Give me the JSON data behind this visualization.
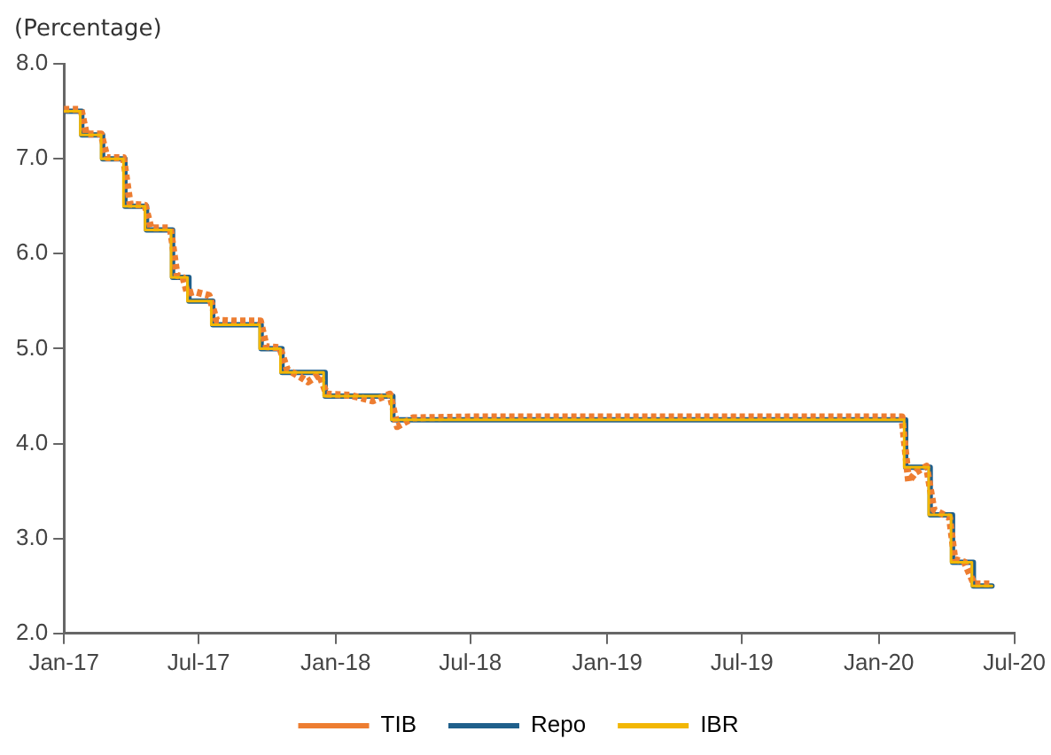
{
  "chart_data": {
    "type": "line",
    "ylabel": "(Percentage)",
    "legend": "bottom",
    "grid": false,
    "marker": "none",
    "xlim": [
      "2017-01-01",
      "2020-07-01"
    ],
    "xticks": [
      {
        "value": "2017-01",
        "label": "Jan-17"
      },
      {
        "value": "2017-07",
        "label": "Jul-17"
      },
      {
        "value": "2018-01",
        "label": "Jan-18"
      },
      {
        "value": "2018-07",
        "label": "Jul-18"
      },
      {
        "value": "2019-01",
        "label": "Jan-19"
      },
      {
        "value": "2019-07",
        "label": "Jul-19"
      },
      {
        "value": "2020-01",
        "label": "Jan-20"
      },
      {
        "value": "2020-07",
        "label": "Jul-20"
      }
    ],
    "ylim": [
      2,
      8
    ],
    "yticks": [
      {
        "value": 2,
        "label": "2.0"
      },
      {
        "value": 3,
        "label": "3.0"
      },
      {
        "value": 4,
        "label": "4.0"
      },
      {
        "value": 5,
        "label": "5.0"
      },
      {
        "value": 6,
        "label": "6.0"
      },
      {
        "value": 7,
        "label": "7.0"
      },
      {
        "value": 8,
        "label": "8.0"
      }
    ],
    "series": [
      {
        "name": "TIB",
        "line_style": "dotted",
        "color": "#ed7d31",
        "x": [
          "2017-01-01",
          "2017-01-24",
          "2017-01-31",
          "2017-02-20",
          "2017-02-28",
          "2017-03-22",
          "2017-03-31",
          "2017-04-20",
          "2017-04-28",
          "2017-05-24",
          "2017-06-02",
          "2017-06-10",
          "2017-06-16",
          "2017-06-25",
          "2017-07-15",
          "2017-07-25",
          "2017-08-15",
          "2017-09-22",
          "2017-09-30",
          "2017-10-18",
          "2017-10-28",
          "2017-11-15",
          "2017-11-25",
          "2017-12-10",
          "2017-12-20",
          "2018-01-20",
          "2018-02-20",
          "2018-03-15",
          "2018-03-25",
          "2018-04-15",
          "2018-07-01",
          "2019-01-01",
          "2019-07-01",
          "2020-02-01",
          "2020-02-10",
          "2020-02-20",
          "2020-03-05",
          "2020-03-15",
          "2020-04-05",
          "2020-04-12",
          "2020-04-25",
          "2020-05-08",
          "2020-06-01"
        ],
        "values": [
          7.52,
          7.52,
          7.26,
          7.26,
          7.01,
          7.01,
          6.52,
          6.51,
          6.27,
          6.27,
          5.77,
          5.75,
          5.58,
          5.6,
          5.56,
          5.3,
          5.29,
          5.29,
          5.02,
          5.01,
          4.78,
          4.7,
          4.65,
          4.73,
          4.52,
          4.51,
          4.45,
          4.52,
          4.18,
          4.27,
          4.28,
          4.28,
          4.28,
          4.28,
          3.6,
          3.7,
          3.76,
          3.3,
          3.22,
          2.78,
          2.75,
          2.52,
          2.52
        ]
      },
      {
        "name": "Repo",
        "type": "step",
        "line_style": "solid",
        "color": "#1f5f8b",
        "x": [
          "2017-01-01",
          "2017-01-25",
          "2017-02-22",
          "2017-03-24",
          "2017-04-22",
          "2017-05-27",
          "2017-06-18",
          "2017-07-20",
          "2017-09-23",
          "2017-10-21",
          "2017-12-18",
          "2018-03-19",
          "2020-02-06",
          "2020-03-10",
          "2020-04-09",
          "2020-05-07",
          "2020-06-01"
        ],
        "values": [
          7.5,
          7.25,
          7.0,
          6.5,
          6.25,
          5.75,
          5.5,
          5.25,
          5.0,
          4.75,
          4.5,
          4.25,
          3.75,
          3.25,
          2.75,
          2.5,
          2.5
        ]
      },
      {
        "name": "IBR",
        "type": "step",
        "line_style": "solid",
        "color": "#f2b705",
        "x": [
          "2017-01-01",
          "2017-01-23",
          "2017-02-20",
          "2017-03-22",
          "2017-04-20",
          "2017-05-25",
          "2017-06-16",
          "2017-07-18",
          "2017-09-21",
          "2017-10-19",
          "2017-12-16",
          "2018-03-17",
          "2020-02-04",
          "2020-03-08",
          "2020-04-07",
          "2020-05-05",
          "2020-06-01"
        ],
        "values": [
          7.5,
          7.25,
          7.0,
          6.5,
          6.25,
          5.75,
          5.5,
          5.25,
          5.0,
          4.75,
          4.5,
          4.25,
          3.75,
          3.25,
          2.75,
          2.5,
          2.5
        ]
      }
    ]
  }
}
